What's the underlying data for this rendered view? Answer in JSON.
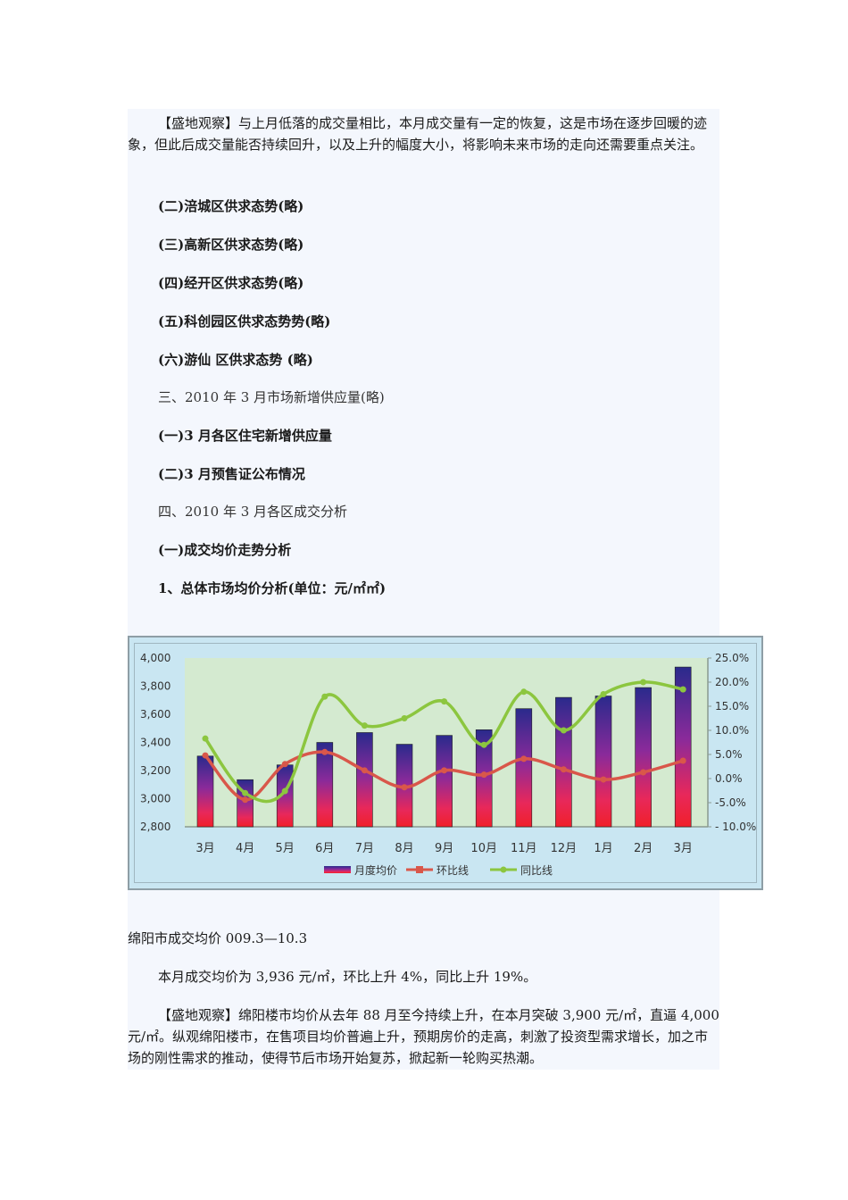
{
  "intro": {
    "paragraph": "【盛地观察】与上月低落的成交量相比，本月成交量有一定的恢复，这是市场在逐步回暖的迹象，但此后成交量能否持续回升，以及上升的幅度大小，将影响未来市场的走向还需要重点关注。"
  },
  "sections": [
    {
      "text": "(二)涪城区供求态势(略)",
      "bold": true
    },
    {
      "text": "(三)高新区供求态势(略)",
      "bold": true
    },
    {
      "text": "(四)经开区供求态势(略)",
      "bold": true
    },
    {
      "text": "(五)科创园区供求态势势(略)",
      "bold": true
    },
    {
      "text": "(六)游仙  区供求态势  (略)",
      "bold": true
    },
    {
      "text": "三、2010 年 3 月市场新增供应量(略)",
      "bold": false
    },
    {
      "text": "(一)3 月各区住宅新增供应量",
      "bold": true
    },
    {
      "text": "(二)3 月预售证公布情况",
      "bold": true
    },
    {
      "text": "四、2010 年 3 月各区成交分析",
      "bold": false
    },
    {
      "text": "(一)成交均价走势分析",
      "bold": true
    },
    {
      "text": "1、总体市场均价分析(单位：元/㎡㎡)",
      "bold": true
    }
  ],
  "chart_data": {
    "type": "bar",
    "title": "",
    "categories": [
      "3月",
      "4月",
      "5月",
      "6月",
      "7月",
      "8月",
      "9月",
      "10月",
      "11月",
      "12月",
      "1月",
      "2月",
      "3月"
    ],
    "series": [
      {
        "name": "月度均价",
        "type": "bar",
        "axis": "left",
        "values": [
          3303,
          3135,
          3240,
          3400,
          3470,
          3387,
          3450,
          3490,
          3640,
          3720,
          3730,
          3790,
          3936
        ]
      },
      {
        "name": "环比线",
        "type": "line",
        "axis": "right",
        "unit": "%",
        "color": "#d9574a",
        "values": [
          4.8,
          -4.4,
          3.0,
          5.5,
          1.7,
          -1.8,
          1.7,
          0.8,
          4.1,
          1.9,
          -0.2,
          1.3,
          3.7
        ]
      },
      {
        "name": "同比线",
        "type": "line",
        "axis": "right",
        "unit": "%",
        "color": "#8cc63f",
        "values": [
          8.3,
          -3.0,
          -2.6,
          17.0,
          11.0,
          12.5,
          16.0,
          7.0,
          18.0,
          10.0,
          17.5,
          20.0,
          18.5
        ]
      }
    ],
    "left_axis": {
      "ylim": [
        2800,
        4000
      ],
      "ticks": [
        "4,000",
        "3,800",
        "3,600",
        "3,400",
        "3,200",
        "3,000",
        "2,800"
      ]
    },
    "right_axis": {
      "ylim": [
        -10,
        25
      ],
      "ticks": [
        "25.0%",
        "20.0%",
        "15.0%",
        "10.0%",
        "5.0%",
        "0.0%",
        "-5.0%",
        "- 10.0%"
      ]
    },
    "legend": {
      "position": "bottom",
      "entries": [
        "月度均价",
        "环比线",
        "同比线"
      ]
    },
    "grid": false,
    "colors": {
      "frame_bg": "#c9e6f2",
      "plot_bg": "#d4ead0",
      "bar_top": "#2a2a8c",
      "bar_bottom": "#f0202a"
    }
  },
  "caption": "绵阳市成交均价  009.3—10.3",
  "summary": "本月成交均价为 3,936 元/㎡，环比上升  4%，同比上升 19%。",
  "observation": "【盛地观察】绵阳楼市均价从去年  88 月至今持续上升，在本月突破  3,900 元/㎡，直逼  4,000 元/㎡。纵观绵阳楼市，在售项目均价普遍上升，预期房价的走高，刺激了投资型需求增长，加之市  场的刚性需求的推动，使得节后市场开始复苏，掀起新一轮购买热潮。"
}
